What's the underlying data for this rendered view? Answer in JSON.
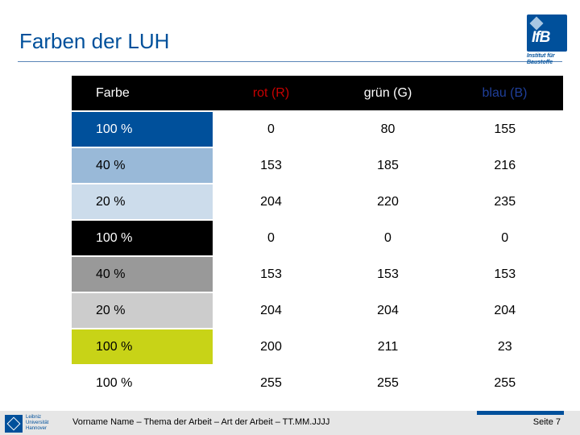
{
  "slide": {
    "title": "Farben der LUH"
  },
  "logo": {
    "mark": "IfB",
    "subtitle_line1": "Institut für",
    "subtitle_line2": "Baustoffe"
  },
  "table": {
    "headers": [
      "Farbe",
      "rot (R)",
      "grün (G)",
      "blau (B)"
    ],
    "header_colors": {
      "r": "#c80000",
      "g": "#ffffff",
      "b": "#1f3f9a"
    },
    "rows": [
      {
        "label": "100 %",
        "swatch": "#00509b",
        "text_color": "#ffffff",
        "r": "0",
        "g": "80",
        "b": "155"
      },
      {
        "label": "40 %",
        "swatch": "#99b9d8",
        "text_color": "#000000",
        "r": "153",
        "g": "185",
        "b": "216"
      },
      {
        "label": "20 %",
        "swatch": "#ccdceb",
        "text_color": "#000000",
        "r": "204",
        "g": "220",
        "b": "235"
      },
      {
        "label": "100 %",
        "swatch": "#000000",
        "text_color": "#ffffff",
        "r": "0",
        "g": "0",
        "b": "0"
      },
      {
        "label": "40 %",
        "swatch": "#999999",
        "text_color": "#000000",
        "r": "153",
        "g": "153",
        "b": "153"
      },
      {
        "label": "20 %",
        "swatch": "#cccccc",
        "text_color": "#000000",
        "r": "204",
        "g": "204",
        "b": "204"
      },
      {
        "label": "100 %",
        "swatch": "#c8d317",
        "text_color": "#000000",
        "r": "200",
        "g": "211",
        "b": "23"
      },
      {
        "label": "100 %",
        "swatch": "#ffffff",
        "text_color": "#000000",
        "r": "255",
        "g": "255",
        "b": "255"
      }
    ]
  },
  "footer": {
    "university_line1": "Leibniz",
    "university_line2": "Universität",
    "university_line3": "Hannover",
    "text": "Vorname Name – Thema der Arbeit – Art der Arbeit – TT.MM.JJJJ",
    "page": "Seite 7"
  }
}
